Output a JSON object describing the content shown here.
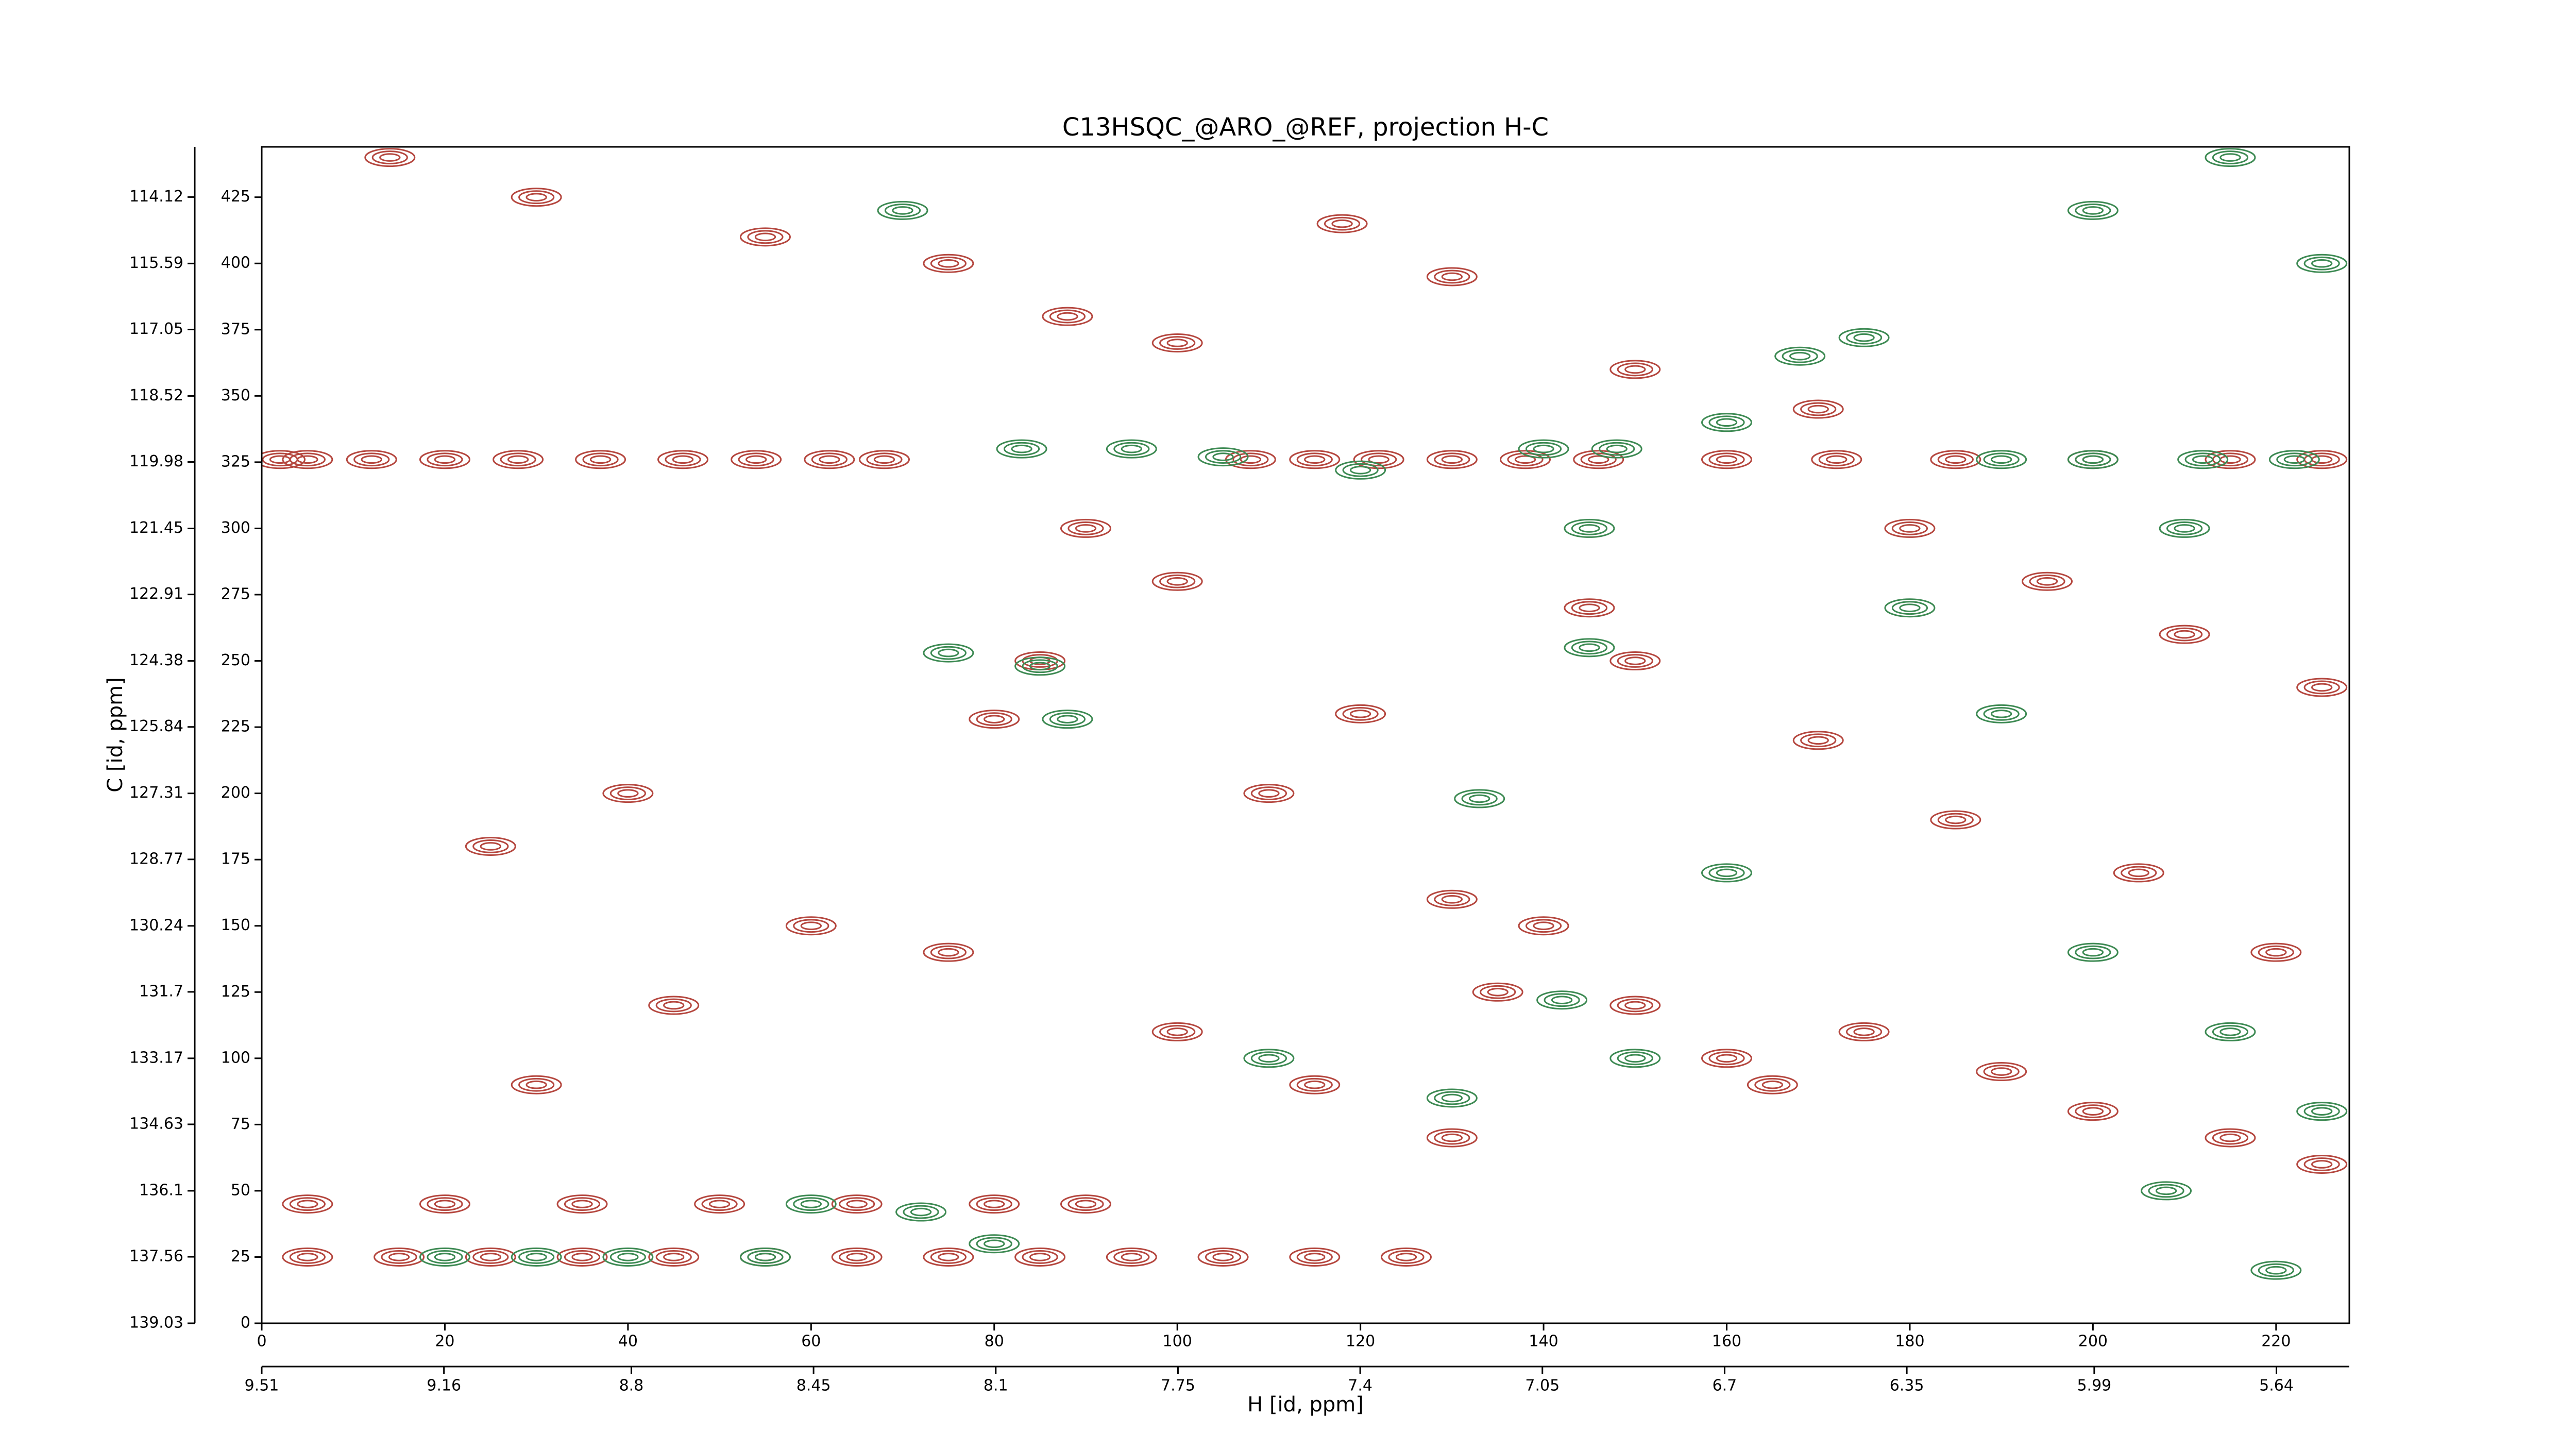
{
  "chart_data": {
    "type": "contour",
    "title": "C13HSQC_@ARO_@REF, projection H-C",
    "xlabel": "H [id, ppm]",
    "ylabel": "C [id, ppm]",
    "xlim": [
      0,
      228
    ],
    "xticks": [
      0,
      20,
      40,
      60,
      80,
      100,
      120,
      140,
      160,
      180,
      200,
      220
    ],
    "x2lim": [
      9.51,
      5.5
    ],
    "x2ticks": [
      9.51,
      9.16,
      8.8,
      8.45,
      8.1,
      7.75,
      7.4,
      7.05,
      6.7,
      6.35,
      5.99,
      5.64
    ],
    "ylim": [
      0,
      444
    ],
    "yticks": [
      0,
      25,
      50,
      75,
      100,
      125,
      150,
      175,
      200,
      225,
      250,
      275,
      300,
      325,
      350,
      375,
      400,
      425
    ],
    "y2lim": [
      139.03,
      113.01
    ],
    "y2ticks": [
      139.03,
      137.56,
      136.1,
      134.63,
      133.17,
      131.7,
      130.24,
      128.77,
      127.31,
      125.84,
      124.38,
      122.91,
      121.45,
      119.98,
      118.52,
      117.05,
      115.59,
      114.12
    ],
    "series": [
      {
        "color": "#b5473f",
        "x": [
          2,
          5,
          12,
          20,
          28,
          37,
          46,
          54,
          62,
          68,
          108,
          115,
          122,
          130,
          138,
          146,
          160,
          172,
          185,
          200,
          215,
          225,
          5,
          15,
          25,
          35,
          45,
          55,
          65,
          75,
          85,
          95,
          105,
          115,
          125,
          5,
          20,
          35,
          50,
          65,
          80,
          90,
          14,
          30,
          55,
          75,
          88,
          100,
          118,
          130,
          150,
          170,
          180,
          195,
          210,
          225,
          90,
          100,
          85,
          80,
          130,
          140,
          135,
          150,
          160,
          165,
          175,
          190,
          200,
          215,
          225,
          40,
          25,
          60,
          45,
          30,
          75,
          110,
          120,
          150,
          145,
          170,
          185,
          205,
          220,
          100,
          115,
          130
        ],
        "y": [
          326,
          326,
          326,
          326,
          326,
          326,
          326,
          326,
          326,
          326,
          326,
          326,
          326,
          326,
          326,
          326,
          326,
          326,
          326,
          326,
          326,
          326,
          25,
          25,
          25,
          25,
          25,
          25,
          25,
          25,
          25,
          25,
          25,
          25,
          25,
          45,
          45,
          45,
          45,
          45,
          45,
          45,
          440,
          425,
          410,
          400,
          380,
          370,
          415,
          395,
          360,
          345,
          300,
          280,
          260,
          240,
          300,
          280,
          250,
          228,
          160,
          150,
          125,
          120,
          100,
          90,
          110,
          95,
          80,
          70,
          60,
          200,
          180,
          150,
          120,
          90,
          140,
          200,
          230,
          250,
          270,
          220,
          190,
          170,
          140,
          110,
          90,
          70
        ]
      },
      {
        "color": "#3d8a53",
        "x": [
          83,
          95,
          105,
          120,
          140,
          148,
          175,
          168,
          160,
          190,
          200,
          212,
          222,
          75,
          85,
          88,
          133,
          145,
          145,
          150,
          142,
          20,
          30,
          40,
          55,
          60,
          72,
          80,
          208,
          220,
          225,
          215,
          200,
          190,
          210,
          225,
          215,
          200,
          70,
          110,
          130,
          160,
          180
        ],
        "y": [
          330,
          330,
          327,
          322,
          330,
          330,
          372,
          365,
          340,
          326,
          326,
          326,
          326,
          253,
          248,
          228,
          198,
          255,
          300,
          100,
          122,
          25,
          25,
          25,
          25,
          45,
          42,
          30,
          50,
          20,
          80,
          110,
          140,
          230,
          300,
          400,
          440,
          420,
          420,
          100,
          85,
          170,
          270
        ]
      }
    ]
  }
}
